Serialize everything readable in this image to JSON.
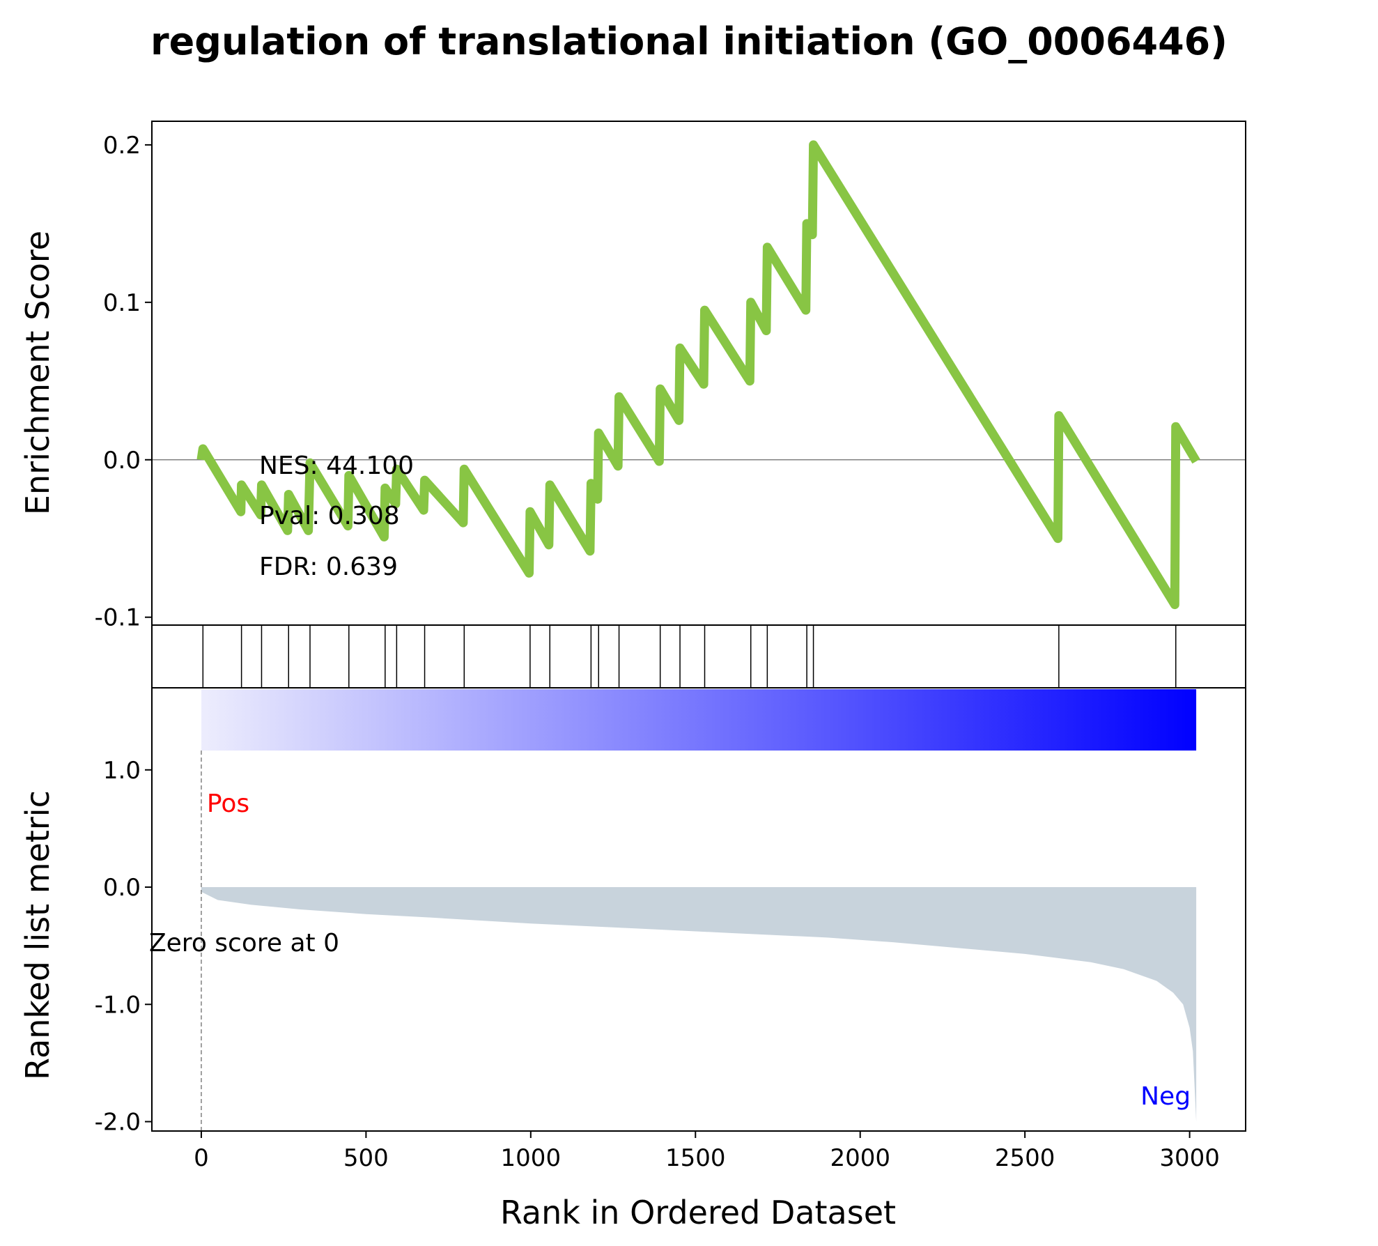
{
  "chart_data": {
    "type": "line",
    "title": "regulation of translational initiation (GO_0006446)",
    "xlabel": "Rank in Ordered Dataset",
    "xlim": [
      -150,
      3170
    ],
    "xticks": [
      0,
      500,
      1000,
      1500,
      2000,
      2500,
      3000
    ],
    "enrichment": {
      "ylabel": "Enrichment Score",
      "ylim": [
        -0.105,
        0.215
      ],
      "yticks": [
        0.2,
        0.1,
        0.0,
        -0.1
      ],
      "ytick_labels": [
        "0.2",
        "0.1",
        "0.0",
        "-0.1"
      ],
      "line_color": "#88c544",
      "points": [
        [
          0,
          0.0
        ],
        [
          5,
          0.007
        ],
        [
          120,
          -0.033
        ],
        [
          122,
          -0.016
        ],
        [
          180,
          -0.035
        ],
        [
          183,
          -0.016
        ],
        [
          262,
          -0.045
        ],
        [
          265,
          -0.022
        ],
        [
          325,
          -0.045
        ],
        [
          330,
          -0.002
        ],
        [
          445,
          -0.042
        ],
        [
          448,
          -0.01
        ],
        [
          555,
          -0.049
        ],
        [
          558,
          -0.018
        ],
        [
          590,
          -0.028
        ],
        [
          593,
          -0.006
        ],
        [
          675,
          -0.032
        ],
        [
          678,
          -0.013
        ],
        [
          795,
          -0.04
        ],
        [
          798,
          -0.006
        ],
        [
          995,
          -0.072
        ],
        [
          998,
          -0.033
        ],
        [
          1055,
          -0.054
        ],
        [
          1058,
          -0.016
        ],
        [
          1180,
          -0.058
        ],
        [
          1183,
          -0.015
        ],
        [
          1203,
          -0.025
        ],
        [
          1206,
          0.017
        ],
        [
          1265,
          -0.004
        ],
        [
          1268,
          0.04
        ],
        [
          1390,
          -0.001
        ],
        [
          1393,
          0.045
        ],
        [
          1450,
          0.025
        ],
        [
          1453,
          0.071
        ],
        [
          1525,
          0.048
        ],
        [
          1528,
          0.095
        ],
        [
          1665,
          0.05
        ],
        [
          1668,
          0.1
        ],
        [
          1715,
          0.082
        ],
        [
          1718,
          0.135
        ],
        [
          1835,
          0.095
        ],
        [
          1838,
          0.15
        ],
        [
          1855,
          0.143
        ],
        [
          1858,
          0.2
        ],
        [
          2600,
          -0.05
        ],
        [
          2603,
          0.028
        ],
        [
          2955,
          -0.092
        ],
        [
          2958,
          0.021
        ],
        [
          3020,
          -0.001
        ]
      ],
      "annotations": [
        {
          "name": "nes",
          "text": "NES: 44.100"
        },
        {
          "name": "pval",
          "text": "Pval: 0.308"
        },
        {
          "name": "fdr",
          "text": "FDR: 0.639"
        }
      ]
    },
    "hits": [
      5,
      122,
      183,
      265,
      330,
      448,
      558,
      593,
      678,
      798,
      998,
      1058,
      1183,
      1206,
      1268,
      1393,
      1453,
      1528,
      1668,
      1718,
      1838,
      1858,
      2603,
      2958
    ],
    "ranked_metric": {
      "ylabel": "Ranked list metric",
      "ylim": [
        -2.08,
        1.7
      ],
      "yticks": [
        1.0,
        0.0,
        -1.0,
        -2.0
      ],
      "ytick_labels": [
        "1.0",
        "0.0",
        "-1.0",
        "-2.0"
      ],
      "x_max": 3020,
      "fill_color": "#c8d3dc",
      "curve": [
        [
          0,
          -0.04
        ],
        [
          50,
          -0.11
        ],
        [
          150,
          -0.15
        ],
        [
          300,
          -0.19
        ],
        [
          500,
          -0.23
        ],
        [
          700,
          -0.26
        ],
        [
          1000,
          -0.31
        ],
        [
          1300,
          -0.35
        ],
        [
          1600,
          -0.39
        ],
        [
          1900,
          -0.43
        ],
        [
          2100,
          -0.47
        ],
        [
          2300,
          -0.52
        ],
        [
          2500,
          -0.57
        ],
        [
          2700,
          -0.64
        ],
        [
          2800,
          -0.7
        ],
        [
          2900,
          -0.8
        ],
        [
          2950,
          -0.9
        ],
        [
          2980,
          -1.0
        ],
        [
          3000,
          -1.2
        ],
        [
          3010,
          -1.4
        ],
        [
          3020,
          -2.0
        ]
      ],
      "zero_score_label": "Zero score at 0",
      "zero_score_rank": 0,
      "pos_label": "Pos",
      "neg_label": "Neg",
      "pos_color": "#ff0000",
      "neg_color": "#0000ff",
      "gradient_start": "#ededfd",
      "gradient_end": "#0000ff"
    }
  }
}
